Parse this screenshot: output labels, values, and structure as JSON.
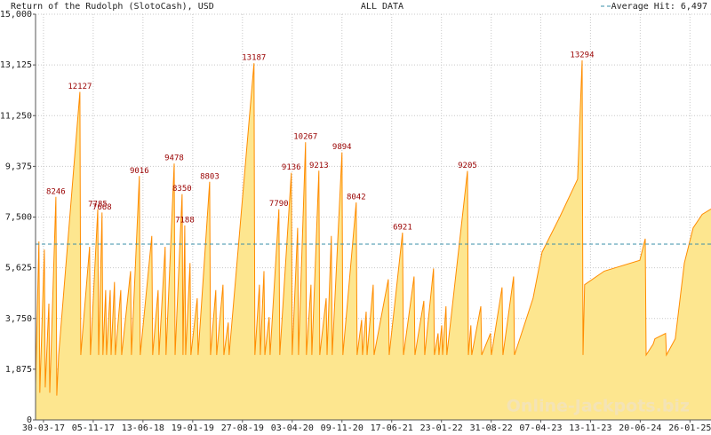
{
  "chart_data": {
    "type": "area",
    "title": "Return of the Rudolph (SlotoCash), USD",
    "subtitle": "ALL DATA",
    "watermark": "Online-Jackpots.biz",
    "color": "#ff8c00",
    "fill_color": "#fde68f",
    "grid": true,
    "legend": "top-right",
    "average_line": {
      "value": 6497,
      "label": "Average Hit: 6,497",
      "color": "#3a8fa8"
    },
    "xlim": [
      "2017-02-23",
      "2025-04-29"
    ],
    "xticks": [
      {
        "value": "2017-03-30",
        "label": "30-03-17"
      },
      {
        "value": "2017-11-05",
        "label": "05-11-17"
      },
      {
        "value": "2018-06-13",
        "label": "13-06-18"
      },
      {
        "value": "2019-01-19",
        "label": "19-01-19"
      },
      {
        "value": "2019-08-27",
        "label": "27-08-19"
      },
      {
        "value": "2020-04-03",
        "label": "03-04-20"
      },
      {
        "value": "2020-11-09",
        "label": "09-11-20"
      },
      {
        "value": "2021-06-17",
        "label": "17-06-21"
      },
      {
        "value": "2022-01-23",
        "label": "23-01-22"
      },
      {
        "value": "2022-08-31",
        "label": "31-08-22"
      },
      {
        "value": "2023-04-07",
        "label": "07-04-23"
      },
      {
        "value": "2023-11-13",
        "label": "13-11-23"
      },
      {
        "value": "2024-06-20",
        "label": "20-06-24"
      },
      {
        "value": "2025-01-26",
        "label": "26-01-25"
      }
    ],
    "ylim": [
      0,
      15000
    ],
    "yticks": [
      0,
      {
        "value": 1875,
        "label": "1,875"
      },
      {
        "value": 3750,
        "label": "3,750"
      },
      {
        "value": 5625,
        "label": "5,625"
      },
      {
        "value": 7500,
        "label": "7,500"
      },
      {
        "value": 9375,
        "label": "9,375"
      },
      {
        "value": 11250,
        "label": "11,250"
      },
      {
        "value": 13125,
        "label": "13,125"
      },
      {
        "value": 15000,
        "label": "15,000"
      }
    ],
    "x": [
      "2017-02-23",
      "2017-03-10",
      "2017-03-14",
      "2017-04-03",
      "2017-04-07",
      "2017-04-23",
      "2017-04-27",
      "2017-05-24",
      "2017-05-28",
      "2017-06-05",
      "2017-09-07",
      "2017-09-11",
      "2017-10-20",
      "2017-10-24",
      "2017-11-25",
      "2017-11-29",
      "2017-12-14",
      "2017-12-18",
      "2017-12-30",
      "2018-01-03",
      "2018-01-19",
      "2018-01-23",
      "2018-02-07",
      "2018-02-11",
      "2018-03-07",
      "2018-03-11",
      "2018-04-19",
      "2018-04-23",
      "2018-05-28",
      "2018-06-01",
      "2018-07-22",
      "2018-07-26",
      "2018-08-19",
      "2018-08-23",
      "2018-09-19",
      "2018-09-23",
      "2018-10-29",
      "2018-11-02",
      "2018-12-03",
      "2018-12-07",
      "2018-12-15",
      "2018-12-19",
      "2019-01-07",
      "2019-01-11",
      "2019-02-08",
      "2019-02-12",
      "2019-04-04",
      "2019-04-08",
      "2019-05-01",
      "2019-05-05",
      "2019-06-02",
      "2019-06-06",
      "2019-06-25",
      "2019-06-29",
      "2019-10-17",
      "2019-10-21",
      "2019-11-10",
      "2019-11-14",
      "2019-11-30",
      "2019-12-04",
      "2019-12-23",
      "2019-12-27",
      "2020-02-04",
      "2020-02-08",
      "2020-03-30",
      "2020-04-03",
      "2020-04-27",
      "2020-05-01",
      "2020-06-01",
      "2020-06-05",
      "2020-06-25",
      "2020-06-29",
      "2020-07-30",
      "2020-08-03",
      "2020-08-31",
      "2020-09-04",
      "2020-09-23",
      "2020-09-27",
      "2020-11-09",
      "2020-11-13",
      "2021-01-11",
      "2021-01-15",
      "2021-02-04",
      "2021-02-08",
      "2021-02-24",
      "2021-02-28",
      "2021-03-27",
      "2021-03-31",
      "2021-06-02",
      "2021-06-06",
      "2021-08-04",
      "2021-08-08",
      "2021-09-24",
      "2021-09-28",
      "2021-11-06",
      "2021-11-10",
      "2021-12-19",
      "2021-12-23",
      "2022-01-08",
      "2022-01-12",
      "2022-01-24",
      "2022-01-28",
      "2022-02-12",
      "2022-02-16",
      "2022-05-18",
      "2022-05-22",
      "2022-06-02",
      "2022-06-06",
      "2022-07-16",
      "2022-07-20",
      "2022-08-28",
      "2022-09-01",
      "2022-10-18",
      "2022-10-22",
      "2022-12-08",
      "2022-12-12",
      "2023-03-04",
      "2023-04-13",
      "2023-06-30",
      "2023-09-17",
      "2023-10-07",
      "2023-10-11",
      "2023-10-18",
      "2024-01-13",
      "2024-06-18",
      "2024-07-12",
      "2024-07-16",
      "2024-08-16",
      "2024-08-24",
      "2024-10-10",
      "2024-10-14",
      "2024-11-22",
      "2025-01-01",
      "2025-02-09",
      "2025-03-21",
      "2025-04-29"
    ],
    "values": [
      1300,
      6600,
      1000,
      6300,
      1200,
      4300,
      1000,
      8246,
      900,
      2400,
      12127,
      2400,
      6400,
      2400,
      7785,
      2400,
      7668,
      2400,
      4800,
      2400,
      4800,
      2400,
      5100,
      2400,
      4800,
      2400,
      5500,
      2400,
      9016,
      2400,
      6800,
      2400,
      4800,
      2400,
      6400,
      2400,
      9478,
      2400,
      8350,
      2400,
      7188,
      2400,
      5800,
      2400,
      4500,
      2400,
      8803,
      2400,
      4800,
      2400,
      5000,
      2400,
      3600,
      2400,
      13187,
      2400,
      5000,
      2400,
      5500,
      2400,
      3800,
      2400,
      7790,
      2400,
      9136,
      2400,
      7100,
      2400,
      10267,
      2400,
      5000,
      2400,
      9213,
      2400,
      4500,
      2400,
      6800,
      2400,
      9894,
      2400,
      8042,
      2400,
      3700,
      2400,
      4000,
      2400,
      5000,
      2400,
      5200,
      2400,
      6921,
      2400,
      5300,
      2400,
      4400,
      2400,
      5600,
      2400,
      3200,
      2400,
      3500,
      2400,
      4200,
      2400,
      9205,
      2400,
      3500,
      2400,
      4200,
      2400,
      3200,
      2400,
      4900,
      2400,
      5300,
      2400,
      4500,
      6200,
      7500,
      8900,
      13294,
      2400,
      5000,
      5500,
      5900,
      6700,
      2400,
      2800,
      3000,
      3200,
      2400,
      3000,
      5800,
      7100,
      7600,
      7800
    ],
    "value_labels": [
      null,
      null,
      null,
      null,
      null,
      null,
      null,
      "8246",
      null,
      null,
      "12127",
      null,
      null,
      null,
      "7785",
      null,
      "7668",
      null,
      null,
      null,
      null,
      null,
      null,
      null,
      null,
      null,
      null,
      null,
      "9016",
      null,
      null,
      null,
      null,
      null,
      null,
      null,
      "9478",
      null,
      "8350",
      null,
      "7188",
      null,
      null,
      null,
      null,
      null,
      "8803",
      null,
      null,
      null,
      null,
      null,
      null,
      null,
      "13187",
      null,
      null,
      null,
      null,
      null,
      null,
      null,
      "7790",
      null,
      "9136",
      null,
      null,
      null,
      "10267",
      null,
      null,
      null,
      "9213",
      null,
      null,
      null,
      null,
      null,
      "9894",
      null,
      "8042",
      null,
      null,
      null,
      null,
      null,
      null,
      null,
      null,
      null,
      "6921",
      null,
      null,
      null,
      null,
      null,
      null,
      null,
      null,
      null,
      null,
      null,
      null,
      null,
      "9205",
      null,
      null,
      null,
      null,
      null,
      null,
      null,
      null,
      null,
      null,
      null,
      null,
      null,
      null,
      null,
      "13294",
      null,
      null,
      null,
      null,
      null,
      null,
      null,
      null,
      null,
      null,
      null,
      null,
      null,
      null,
      null
    ]
  }
}
